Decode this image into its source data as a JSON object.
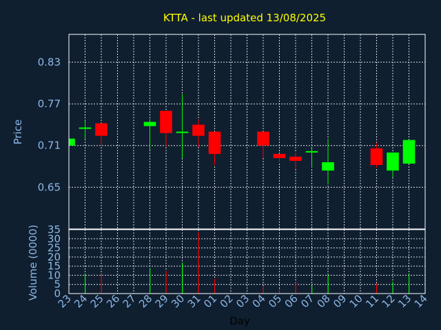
{
  "chart_data": [
    {
      "type": "candlestick",
      "title": "KTTA - last updated 13/08/2025",
      "ylabel": "Price",
      "ylim": [
        0.59,
        0.87
      ],
      "y_ticks": [
        "0.65",
        "0.71",
        "0.77",
        "0.83"
      ],
      "y_tick_values": [
        0.65,
        0.71,
        0.77,
        0.83
      ],
      "grid": true,
      "up_color": "#00ff00",
      "down_color": "#ff0000",
      "categories": [
        "23",
        "24",
        "25",
        "26",
        "27",
        "28",
        "29",
        "30",
        "31",
        "01",
        "02",
        "03",
        "04",
        "05",
        "06",
        "07",
        "08",
        "09",
        "10",
        "11",
        "12",
        "13",
        "14"
      ],
      "candles": [
        {
          "x": "23",
          "open": 0.71,
          "high": 0.72,
          "low": 0.71,
          "close": 0.72,
          "color": "up"
        },
        {
          "x": "24",
          "open": 0.734,
          "high": 0.746,
          "low": 0.72,
          "close": 0.736,
          "color": "up"
        },
        {
          "x": "25",
          "open": 0.742,
          "high": 0.742,
          "low": 0.71,
          "close": 0.724,
          "color": "down"
        },
        {
          "x": "28",
          "open": 0.738,
          "high": 0.748,
          "low": 0.704,
          "close": 0.744,
          "color": "up"
        },
        {
          "x": "29",
          "open": 0.76,
          "high": 0.76,
          "low": 0.708,
          "close": 0.728,
          "color": "down"
        },
        {
          "x": "30",
          "open": 0.728,
          "high": 0.784,
          "low": 0.692,
          "close": 0.73,
          "color": "up"
        },
        {
          "x": "31",
          "open": 0.74,
          "high": 0.748,
          "low": 0.708,
          "close": 0.724,
          "color": "down"
        },
        {
          "x": "01",
          "open": 0.73,
          "high": 0.73,
          "low": 0.682,
          "close": 0.698,
          "color": "down"
        },
        {
          "x": "04",
          "open": 0.73,
          "high": 0.73,
          "low": 0.692,
          "close": 0.71,
          "color": "down"
        },
        {
          "x": "05",
          "open": 0.698,
          "high": 0.698,
          "low": 0.686,
          "close": 0.692,
          "color": "down"
        },
        {
          "x": "06",
          "open": 0.694,
          "high": 0.7,
          "low": 0.676,
          "close": 0.688,
          "color": "down"
        },
        {
          "x": "07",
          "open": 0.7,
          "high": 0.706,
          "low": 0.678,
          "close": 0.702,
          "color": "up"
        },
        {
          "x": "08",
          "open": 0.674,
          "high": 0.72,
          "low": 0.654,
          "close": 0.686,
          "color": "up"
        },
        {
          "x": "11",
          "open": 0.706,
          "high": 0.714,
          "low": 0.678,
          "close": 0.682,
          "color": "down"
        },
        {
          "x": "12",
          "open": 0.674,
          "high": 0.7,
          "low": 0.664,
          "close": 0.7,
          "color": "up"
        },
        {
          "x": "13",
          "open": 0.684,
          "high": 0.718,
          "low": 0.684,
          "close": 0.718,
          "color": "up"
        }
      ]
    },
    {
      "type": "bar",
      "ylabel": "Volume (0000)",
      "xlabel": "Day",
      "ylim": [
        0,
        35
      ],
      "y_ticks": [
        "0",
        "5",
        "10",
        "15",
        "20",
        "25",
        "30",
        "35"
      ],
      "y_tick_values": [
        0,
        5,
        10,
        15,
        20,
        25,
        30,
        35
      ],
      "categories": [
        "23",
        "24",
        "25",
        "26",
        "27",
        "28",
        "29",
        "30",
        "31",
        "01",
        "02",
        "03",
        "04",
        "05",
        "06",
        "07",
        "08",
        "09",
        "10",
        "11",
        "12",
        "13",
        "14"
      ],
      "bars": [
        {
          "x": "24",
          "value": 10.5,
          "color": "up"
        },
        {
          "x": "25",
          "value": 10.5,
          "color": "down"
        },
        {
          "x": "28",
          "value": 14,
          "color": "up"
        },
        {
          "x": "29",
          "value": 12.5,
          "color": "down"
        },
        {
          "x": "30",
          "value": 17,
          "color": "up"
        },
        {
          "x": "31",
          "value": 33.5,
          "color": "down"
        },
        {
          "x": "01",
          "value": 8,
          "color": "down"
        },
        {
          "x": "04",
          "value": 4,
          "color": "down"
        },
        {
          "x": "05",
          "value": 2.5,
          "color": "down"
        },
        {
          "x": "06",
          "value": 6,
          "color": "down"
        },
        {
          "x": "07",
          "value": 4.5,
          "color": "up"
        },
        {
          "x": "08",
          "value": 10,
          "color": "up"
        },
        {
          "x": "11",
          "value": 5.5,
          "color": "down"
        },
        {
          "x": "12",
          "value": 6.5,
          "color": "up"
        },
        {
          "x": "13",
          "value": 10.5,
          "color": "up"
        }
      ]
    }
  ]
}
